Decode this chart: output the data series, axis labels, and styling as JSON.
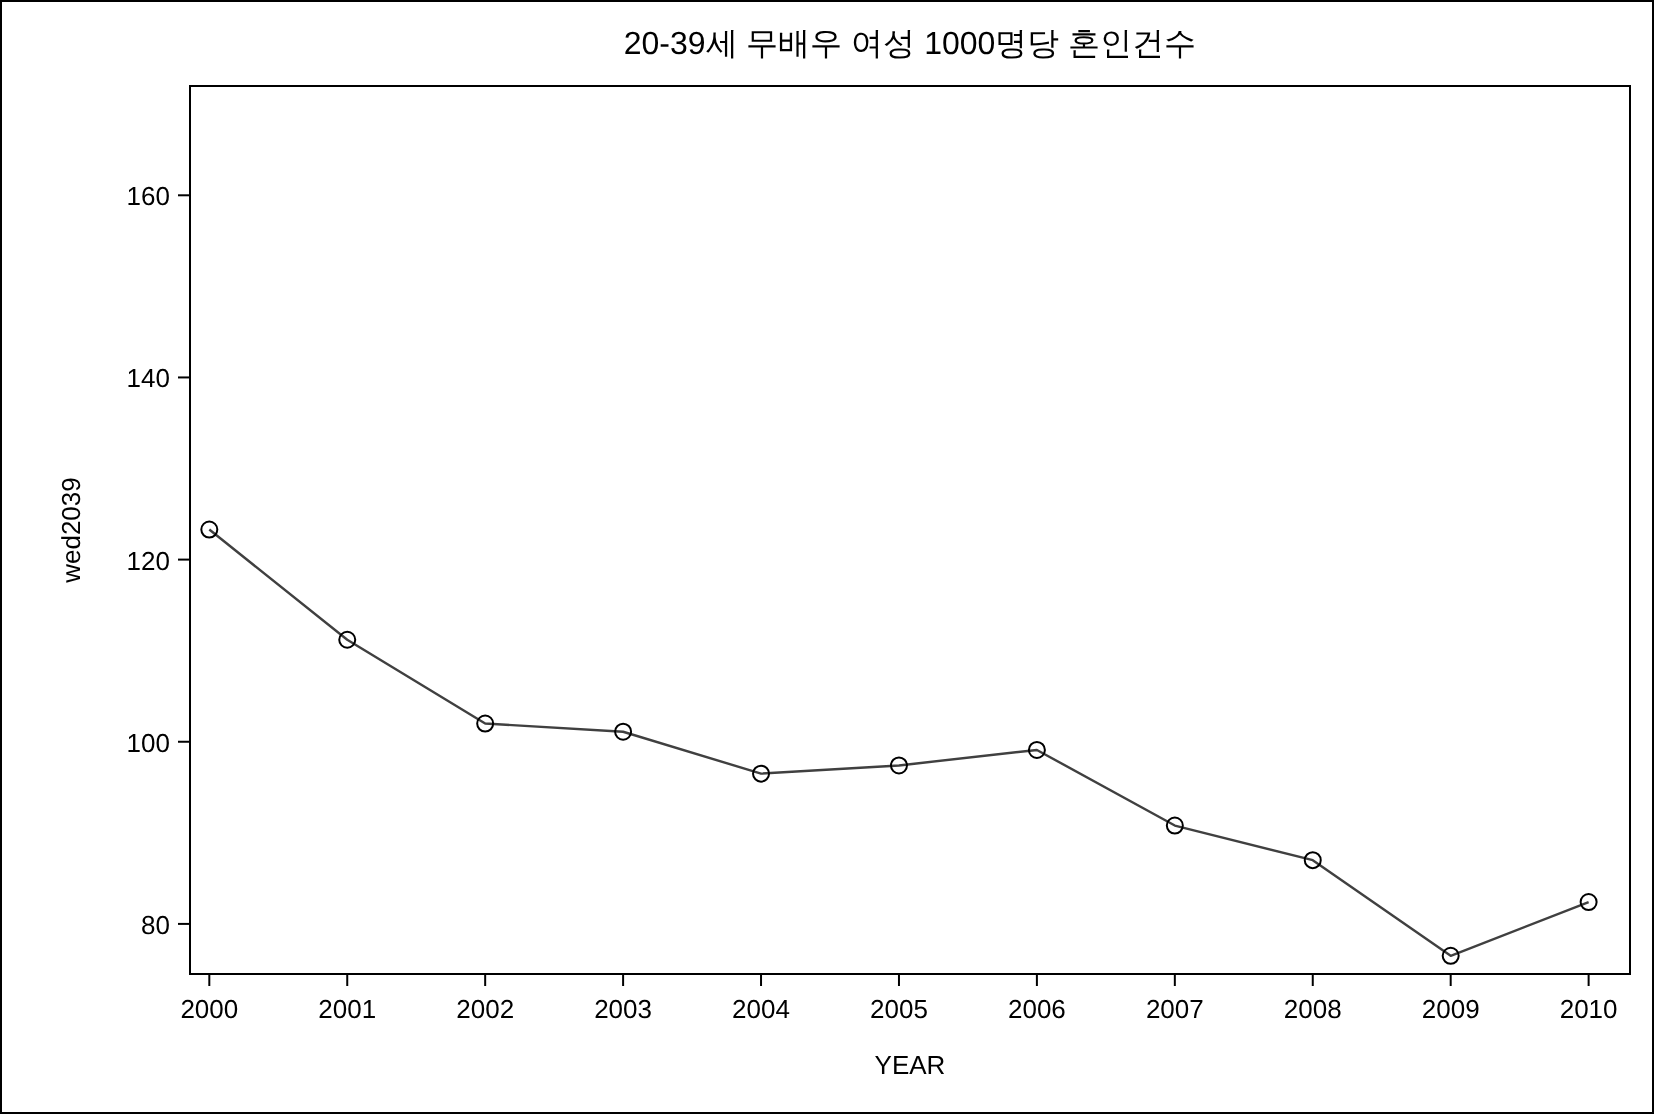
{
  "chart_data": {
    "type": "line",
    "title": "20-39세 무배우 여성 1000명당 혼인건수",
    "xlabel": "YEAR",
    "ylabel": "wed2039",
    "x": [
      2000,
      2001,
      2002,
      2003,
      2004,
      2005,
      2006,
      2007,
      2008,
      2009,
      2010
    ],
    "series": [
      {
        "color": "#404040",
        "values": [
          123.3,
          111.2,
          102.0,
          101.1,
          96.5,
          97.4,
          99.1,
          90.8,
          87.0,
          76.5,
          82.4
        ]
      }
    ],
    "xlim": [
      1999.86,
      2010.3
    ],
    "ylim": [
      74.5,
      172
    ],
    "xticks": [
      2000,
      2001,
      2002,
      2003,
      2004,
      2005,
      2006,
      2007,
      2008,
      2009,
      2010
    ],
    "yticks": [
      80,
      100,
      120,
      140,
      160
    ],
    "marker": "circle",
    "line_style": "solid",
    "grid": false
  }
}
